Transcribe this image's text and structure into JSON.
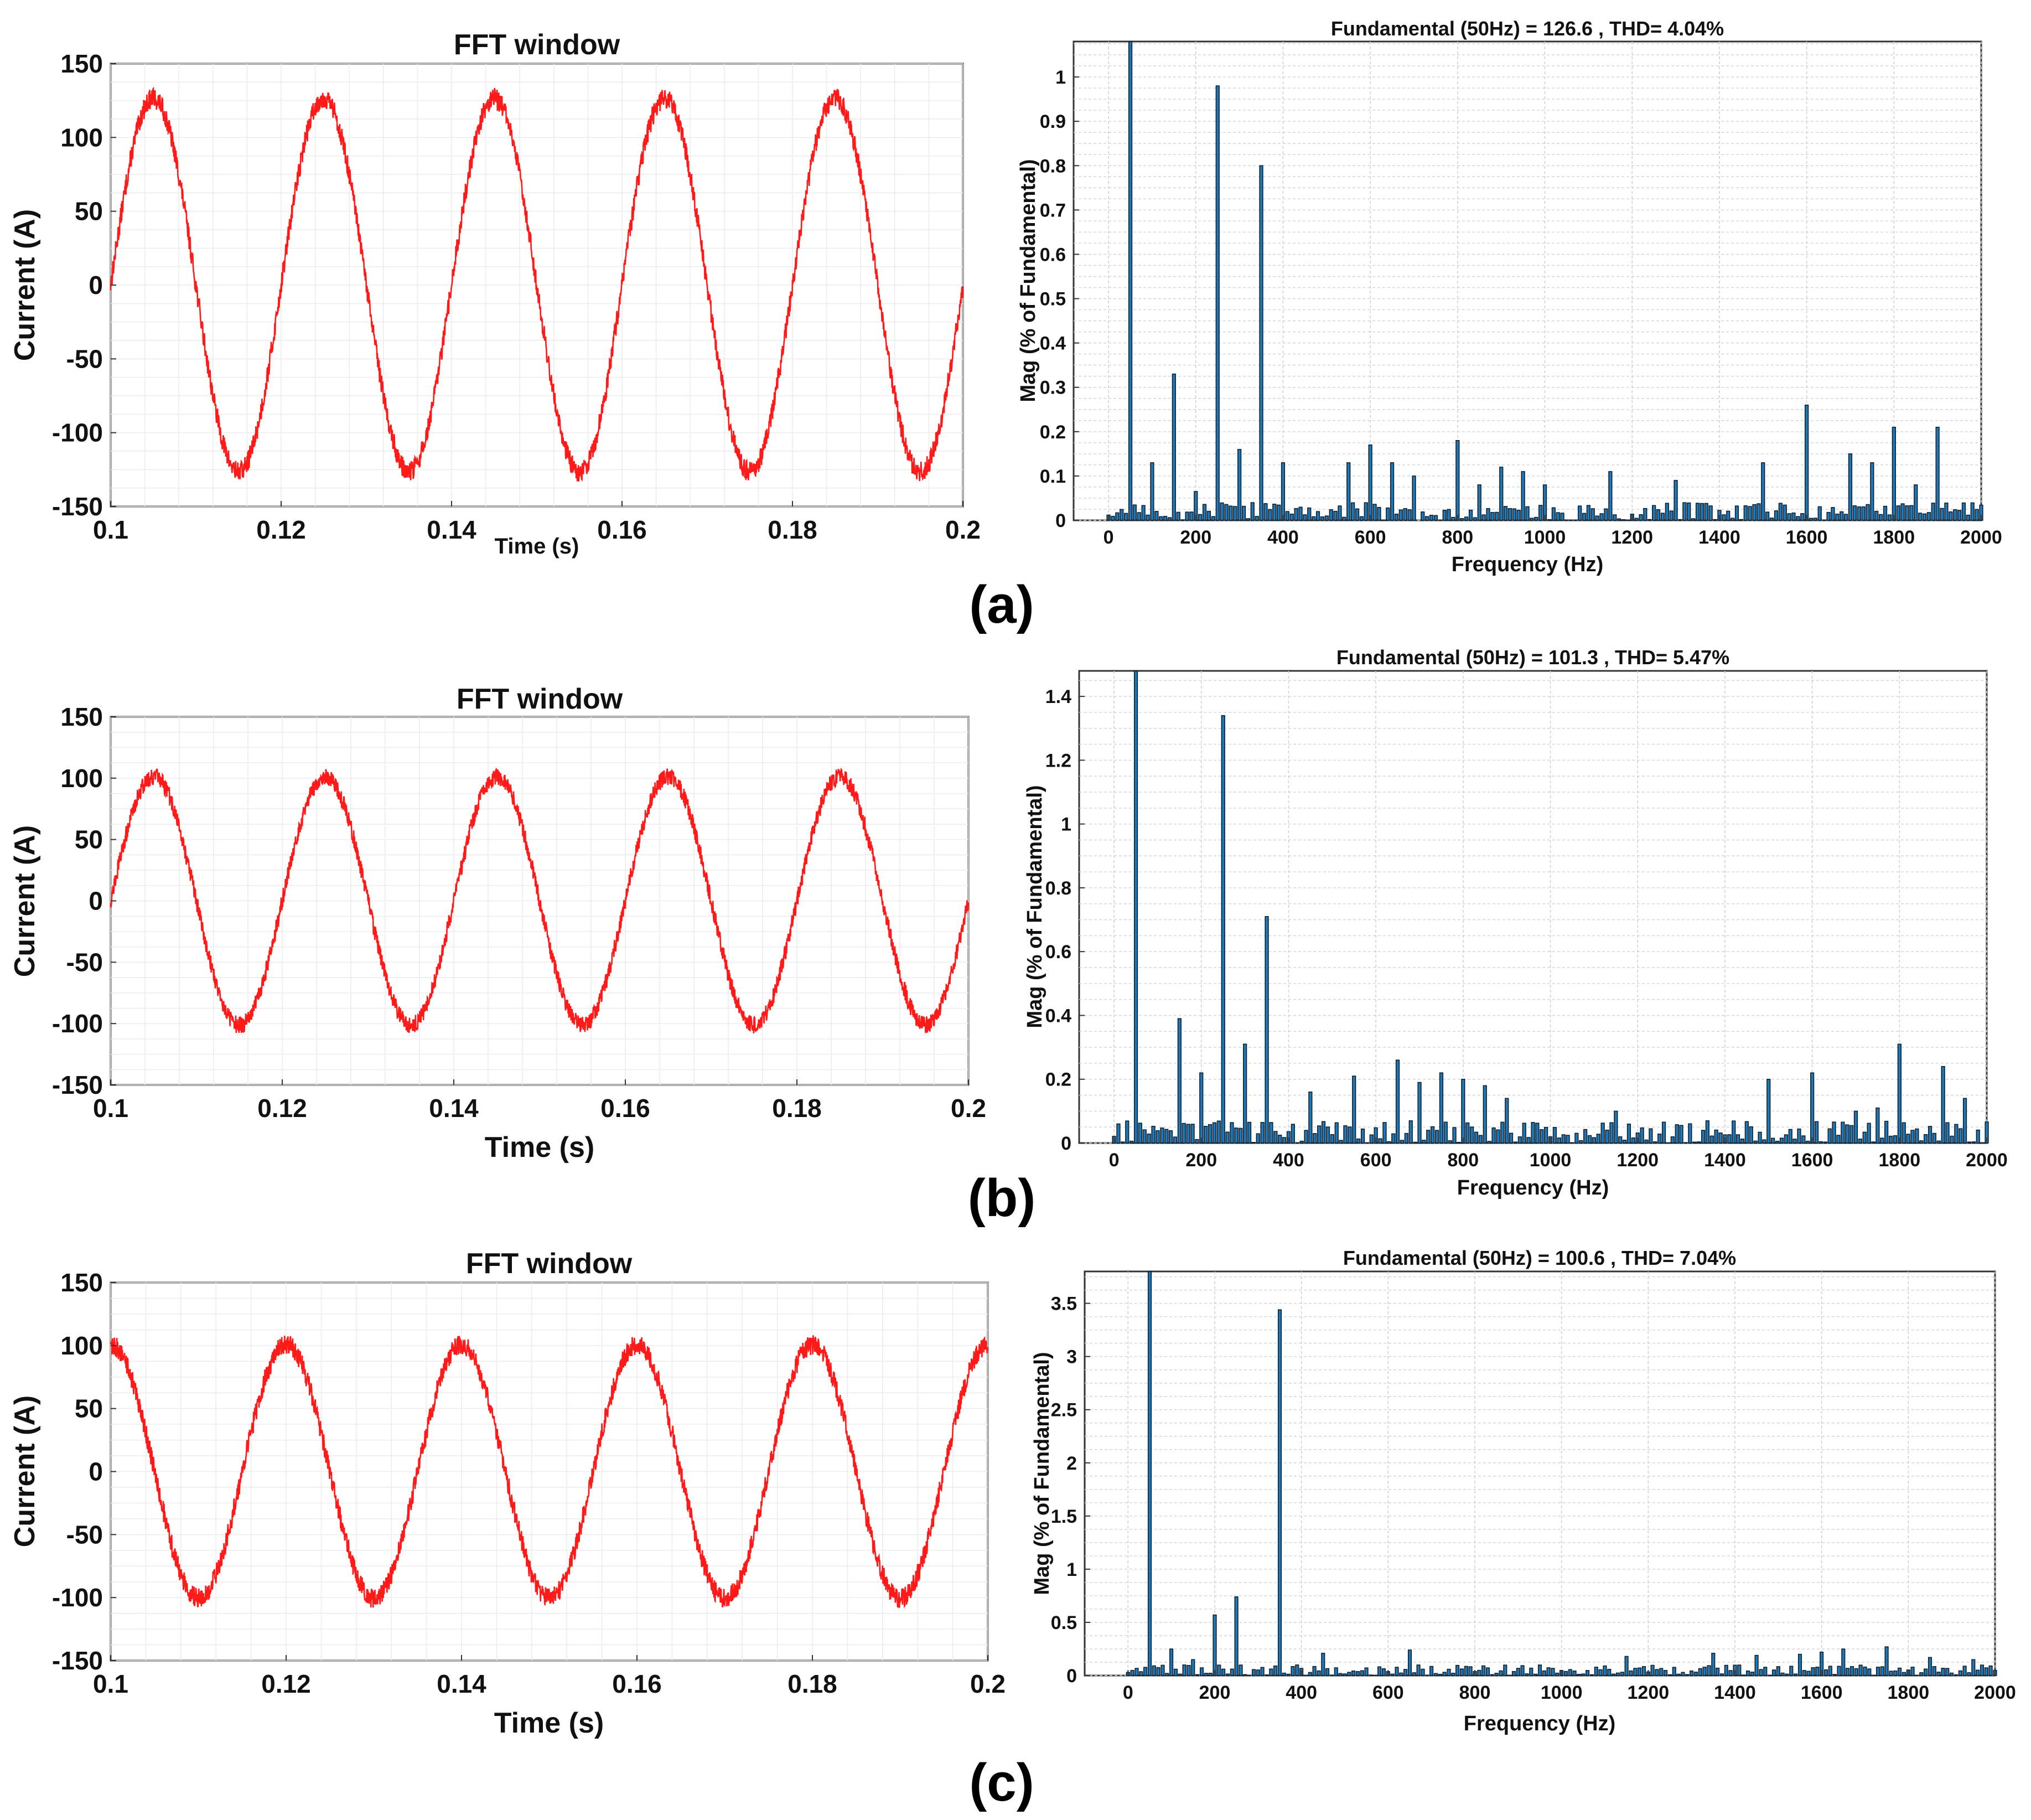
{
  "colors": {
    "waveform": "#ff1a1a",
    "bar_fill": "#1f77b4",
    "bar_edge": "#0a1a2a"
  },
  "chart_data": [
    {
      "id": "a-wave",
      "type": "line",
      "panel": "(a)",
      "title": "FFT window",
      "xlabel": "Time (s)",
      "ylabel": "Current (A)",
      "xlim": [
        0.1,
        0.2
      ],
      "ylim": [
        -150,
        150
      ],
      "xticks": [
        0.1,
        0.12,
        0.14,
        0.16,
        0.18,
        0.2
      ],
      "xtick_labels": [
        "0.1",
        "0.12",
        "0.14",
        "0.16",
        "0.18",
        "0.2"
      ],
      "yticks": [
        -150,
        -100,
        -50,
        0,
        50,
        100,
        150
      ],
      "ytick_labels": [
        "-150",
        "-100",
        "-50",
        "0",
        "50",
        "100",
        "150"
      ],
      "signal": {
        "frequency_hz": 50,
        "amplitude": 126.6,
        "phase_deg": 0,
        "ripple": 7
      }
    },
    {
      "id": "a-fft",
      "type": "bar",
      "panel": "(a)",
      "title": "Fundamental (50Hz) = 126.6 , THD= 4.04%",
      "xlabel": "Frequency (Hz)",
      "ylabel": "Mag (% of Fundamental)",
      "xlim": [
        -80,
        2000
      ],
      "ylim": [
        0,
        1.08
      ],
      "xticks": [
        0,
        200,
        400,
        600,
        800,
        1000,
        1200,
        1400,
        1600,
        1800,
        2000
      ],
      "xtick_labels": [
        "0",
        "200",
        "400",
        "600",
        "800",
        "1000",
        "1200",
        "1400",
        "1600",
        "1800",
        "2000"
      ],
      "yticks": [
        0,
        0.1,
        0.2,
        0.3,
        0.4,
        0.5,
        0.6,
        0.7,
        0.8,
        0.9,
        1
      ],
      "ytick_labels": [
        "0",
        "0.1",
        "0.2",
        "0.3",
        "0.4",
        "0.5",
        "0.6",
        "0.7",
        "0.8",
        "0.9",
        "1"
      ],
      "bin_hz": 10,
      "noise_level": 0.04,
      "peaks": [
        [
          50,
          1.08
        ],
        [
          100,
          0.13
        ],
        [
          150,
          0.33
        ],
        [
          200,
          0.065
        ],
        [
          250,
          0.98
        ],
        [
          300,
          0.16
        ],
        [
          350,
          0.8
        ],
        [
          400,
          0.13
        ],
        [
          550,
          0.13
        ],
        [
          600,
          0.17
        ],
        [
          650,
          0.13
        ],
        [
          700,
          0.1
        ],
        [
          800,
          0.18
        ],
        [
          850,
          0.08
        ],
        [
          900,
          0.12
        ],
        [
          950,
          0.11
        ],
        [
          1000,
          0.08
        ],
        [
          1150,
          0.11
        ],
        [
          1300,
          0.09
        ],
        [
          1500,
          0.13
        ],
        [
          1600,
          0.26
        ],
        [
          1700,
          0.15
        ],
        [
          1750,
          0.13
        ],
        [
          1800,
          0.21
        ],
        [
          1850,
          0.08
        ],
        [
          1900,
          0.21
        ]
      ]
    },
    {
      "id": "b-wave",
      "type": "line",
      "panel": "(b)",
      "title": "FFT window",
      "xlabel": "Time (s)",
      "ylabel": "Current (A)",
      "xlim": [
        0.1,
        0.2
      ],
      "ylim": [
        -150,
        150
      ],
      "xticks": [
        0.1,
        0.12,
        0.14,
        0.16,
        0.18,
        0.2
      ],
      "xtick_labels": [
        "0.1",
        "0.12",
        "0.14",
        "0.16",
        "0.18",
        "0.2"
      ],
      "yticks": [
        -150,
        -100,
        -50,
        0,
        50,
        100,
        150
      ],
      "ytick_labels": [
        "-150",
        "-100",
        "-50",
        "0",
        "50",
        "100",
        "150"
      ],
      "signal": {
        "frequency_hz": 50,
        "amplitude": 101.3,
        "phase_deg": 0,
        "ripple": 7
      }
    },
    {
      "id": "b-fft",
      "type": "bar",
      "panel": "(b)",
      "title": "Fundamental (50Hz) = 101.3 , THD= 5.47%",
      "xlabel": "Frequency (Hz)",
      "ylabel": "Mag (% of Fundamental)",
      "xlim": [
        -80,
        2000
      ],
      "ylim": [
        0,
        1.48
      ],
      "xticks": [
        0,
        200,
        400,
        600,
        800,
        1000,
        1200,
        1400,
        1600,
        1800,
        2000
      ],
      "xtick_labels": [
        "0",
        "200",
        "400",
        "600",
        "800",
        "1000",
        "1200",
        "1400",
        "1600",
        "1800",
        "2000"
      ],
      "yticks": [
        0,
        0.2,
        0.4,
        0.6,
        0.8,
        1,
        1.2,
        1.4
      ],
      "ytick_labels": [
        "0",
        "0.2",
        "0.4",
        "0.6",
        "0.8",
        "1",
        "1.2",
        "1.4"
      ],
      "bin_hz": 10,
      "noise_level": 0.07,
      "peaks": [
        [
          50,
          1.48
        ],
        [
          150,
          0.39
        ],
        [
          200,
          0.22
        ],
        [
          250,
          1.34
        ],
        [
          300,
          0.31
        ],
        [
          350,
          0.71
        ],
        [
          450,
          0.16
        ],
        [
          550,
          0.21
        ],
        [
          650,
          0.26
        ],
        [
          700,
          0.19
        ],
        [
          750,
          0.22
        ],
        [
          800,
          0.2
        ],
        [
          850,
          0.18
        ],
        [
          900,
          0.14
        ],
        [
          1150,
          0.1
        ],
        [
          1500,
          0.2
        ],
        [
          1600,
          0.22
        ],
        [
          1700,
          0.1
        ],
        [
          1750,
          0.11
        ],
        [
          1800,
          0.31
        ],
        [
          1900,
          0.24
        ],
        [
          1950,
          0.14
        ]
      ]
    },
    {
      "id": "c-wave",
      "type": "line",
      "panel": "(c)",
      "title": "FFT window",
      "xlabel": "Time (s)",
      "ylabel": "Current (A)",
      "xlim": [
        0.1,
        0.2
      ],
      "ylim": [
        -150,
        150
      ],
      "xticks": [
        0.1,
        0.12,
        0.14,
        0.16,
        0.18,
        0.2
      ],
      "xtick_labels": [
        "0.1",
        "0.12",
        "0.14",
        "0.16",
        "0.18",
        "0.2"
      ],
      "yticks": [
        -150,
        -100,
        -50,
        0,
        50,
        100,
        150
      ],
      "ytick_labels": [
        "-150",
        "-100",
        "-50",
        "0",
        "50",
        "100",
        "150"
      ],
      "signal": {
        "frequency_hz": 50,
        "amplitude": 100.6,
        "phase_deg": 90,
        "ripple": 8
      }
    },
    {
      "id": "c-fft",
      "type": "bar",
      "panel": "(c)",
      "title": "Fundamental (50Hz) = 100.6 , THD= 7.04%",
      "xlabel": "Frequency (Hz)",
      "ylabel": "Mag (% of Fundamental)",
      "xlim": [
        -100,
        2000
      ],
      "ylim": [
        0,
        3.8
      ],
      "xticks": [
        0,
        200,
        400,
        600,
        800,
        1000,
        1200,
        1400,
        1600,
        1800,
        2000
      ],
      "xtick_labels": [
        "0",
        "200",
        "400",
        "600",
        "800",
        "1000",
        "1200",
        "1400",
        "1600",
        "1800",
        "2000"
      ],
      "yticks": [
        0,
        0.5,
        1,
        1.5,
        2,
        2.5,
        3,
        3.5
      ],
      "ytick_labels": [
        "0",
        "0.5",
        "1",
        "1.5",
        "2",
        "2.5",
        "3",
        "3.5"
      ],
      "bin_hz": 10,
      "noise_level": 0.1,
      "peaks": [
        [
          50,
          3.8
        ],
        [
          100,
          0.25
        ],
        [
          150,
          0.15
        ],
        [
          200,
          0.57
        ],
        [
          250,
          0.74
        ],
        [
          350,
          3.44
        ],
        [
          450,
          0.21
        ],
        [
          650,
          0.24
        ],
        [
          1150,
          0.18
        ],
        [
          1350,
          0.21
        ],
        [
          1450,
          0.19
        ],
        [
          1550,
          0.2
        ],
        [
          1600,
          0.22
        ],
        [
          1650,
          0.25
        ],
        [
          1750,
          0.27
        ],
        [
          1850,
          0.17
        ],
        [
          1950,
          0.15
        ]
      ]
    }
  ],
  "panel_labels": [
    "(a)",
    "(b)",
    "(c)"
  ]
}
